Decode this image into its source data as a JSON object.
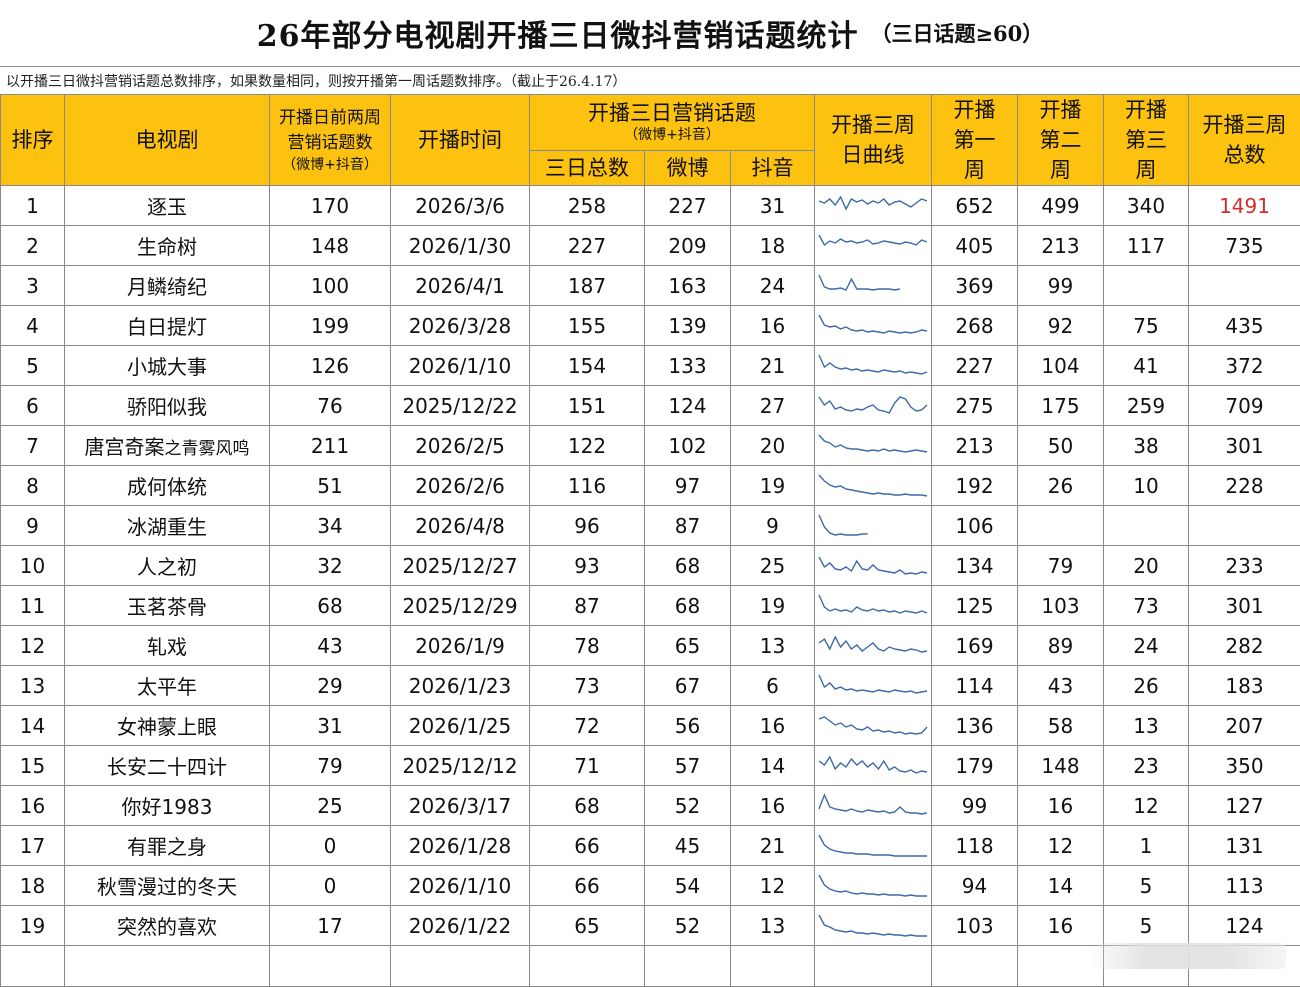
{
  "title": "26年部分电视剧开播三日微抖营销话题统计",
  "title_note": "（三日话题≥60）",
  "subtitle": "以开播三日微抖营销话题总数排序，如果数量相同，则按开播第一周话题数排序。（截止于26.4.17）",
  "headers": {
    "rank": "排序",
    "drama": "电视剧",
    "pre": "开播日前两周营销话题数",
    "pre_sub": "（微博+抖音）",
    "date": "开播时间",
    "three_day_group": "开播三日营销话题",
    "three_day_group_sub": "（微博+抖音）",
    "three_total": "三日总数",
    "weibo": "微博",
    "douyin": "抖音",
    "curve": "开播三周日曲线",
    "week1": "开播第一周",
    "week2": "开播第二周",
    "week3": "开播第三周",
    "total3": "开播三周总数"
  },
  "rows": [
    {
      "rank": "1",
      "name": "逐玉",
      "name_suffix": "",
      "pre": "170",
      "date": "2026/3/6",
      "total": "258",
      "weibo": "227",
      "douyin": "31",
      "w1": "652",
      "w2": "499",
      "w3": "340",
      "sum": "1491",
      "curve": [
        18,
        16,
        20,
        14,
        22,
        10,
        20,
        17,
        19,
        15,
        18,
        16,
        20,
        14,
        17,
        18,
        15,
        12,
        16,
        20,
        18
      ]
    },
    {
      "rank": "2",
      "name": "生命树",
      "name_suffix": "",
      "pre": "148",
      "date": "2026/1/30",
      "total": "227",
      "weibo": "209",
      "douyin": "18",
      "w1": "405",
      "w2": "213",
      "w3": "117",
      "sum": "735",
      "curve": [
        24,
        14,
        18,
        16,
        20,
        17,
        18,
        16,
        17,
        19,
        15,
        16,
        18,
        17,
        16,
        15,
        17,
        16,
        14,
        19,
        17
      ]
    },
    {
      "rank": "3",
      "name": "月鳞绮纪",
      "name_suffix": "",
      "pre": "100",
      "date": "2026/4/1",
      "total": "187",
      "weibo": "163",
      "douyin": "24",
      "w1": "369",
      "w2": "99",
      "w3": "",
      "sum": "",
      "curve": [
        24,
        12,
        10,
        10,
        11,
        9,
        20,
        10,
        10,
        10,
        9,
        10,
        10,
        10,
        9,
        10
      ]
    },
    {
      "rank": "4",
      "name": "白日提灯",
      "name_suffix": "",
      "pre": "199",
      "date": "2026/3/28",
      "total": "155",
      "weibo": "139",
      "douyin": "16",
      "w1": "268",
      "w2": "92",
      "w3": "75",
      "sum": "435",
      "curve": [
        24,
        14,
        12,
        13,
        10,
        12,
        9,
        8,
        9,
        7,
        8,
        7,
        6,
        8,
        7,
        6,
        7,
        6,
        7,
        9,
        8
      ]
    },
    {
      "rank": "5",
      "name": "小城大事",
      "name_suffix": "",
      "pre": "126",
      "date": "2026/1/10",
      "total": "154",
      "weibo": "133",
      "douyin": "21",
      "w1": "227",
      "w2": "104",
      "w3": "41",
      "sum": "372",
      "curve": [
        24,
        12,
        16,
        12,
        10,
        11,
        9,
        10,
        8,
        9,
        8,
        7,
        9,
        8,
        7,
        8,
        6,
        7,
        6,
        5,
        7
      ]
    },
    {
      "rank": "6",
      "name": "骄阳似我",
      "name_suffix": "",
      "pre": "76",
      "date": "2025/12/22",
      "total": "151",
      "weibo": "124",
      "douyin": "27",
      "w1": "275",
      "w2": "175",
      "w3": "259",
      "sum": "709",
      "curve": [
        22,
        14,
        18,
        10,
        12,
        9,
        8,
        10,
        9,
        12,
        14,
        9,
        8,
        6,
        16,
        22,
        20,
        12,
        8,
        9,
        14
      ]
    },
    {
      "rank": "7",
      "name": "唐宫奇案",
      "name_suffix": "之青雾风鸣",
      "pre": "211",
      "date": "2026/2/5",
      "total": "122",
      "weibo": "102",
      "douyin": "20",
      "w1": "213",
      "w2": "50",
      "w3": "38",
      "sum": "301",
      "curve": [
        24,
        18,
        16,
        12,
        14,
        11,
        10,
        10,
        9,
        8,
        9,
        8,
        10,
        8,
        9,
        8,
        7,
        8,
        9,
        8,
        7
      ]
    },
    {
      "rank": "8",
      "name": "成何体统",
      "name_suffix": "",
      "pre": "51",
      "date": "2026/2/6",
      "total": "116",
      "weibo": "97",
      "douyin": "19",
      "w1": "192",
      "w2": "26",
      "w3": "10",
      "sum": "228",
      "curve": [
        24,
        18,
        14,
        12,
        13,
        10,
        9,
        8,
        7,
        6,
        5,
        6,
        5,
        5,
        4,
        4,
        5,
        4,
        4,
        4,
        3
      ]
    },
    {
      "rank": "9",
      "name": "冰湖重生",
      "name_suffix": "",
      "pre": "34",
      "date": "2026/4/8",
      "total": "96",
      "weibo": "87",
      "douyin": "9",
      "w1": "106",
      "w2": "",
      "w3": "",
      "sum": "",
      "curve": [
        24,
        12,
        6,
        4,
        5,
        4,
        4,
        4,
        5,
        5
      ]
    },
    {
      "rank": "10",
      "name": "人之初",
      "name_suffix": "",
      "pre": "32",
      "date": "2025/12/27",
      "total": "93",
      "weibo": "68",
      "douyin": "25",
      "w1": "134",
      "w2": "79",
      "w3": "20",
      "sum": "233",
      "curve": [
        22,
        12,
        16,
        10,
        9,
        12,
        8,
        18,
        10,
        9,
        14,
        9,
        8,
        7,
        6,
        9,
        5,
        6,
        5,
        7,
        6
      ]
    },
    {
      "rank": "11",
      "name": "玉茗茶骨",
      "name_suffix": "",
      "pre": "68",
      "date": "2025/12/29",
      "total": "87",
      "weibo": "68",
      "douyin": "19",
      "w1": "125",
      "w2": "103",
      "w3": "73",
      "sum": "301",
      "curve": [
        24,
        12,
        8,
        10,
        8,
        9,
        7,
        12,
        9,
        8,
        10,
        8,
        9,
        7,
        8,
        6,
        8,
        7,
        6,
        8,
        6
      ]
    },
    {
      "rank": "12",
      "name": "轧戏",
      "name_suffix": "",
      "pre": "43",
      "date": "2026/1/9",
      "total": "78",
      "weibo": "65",
      "douyin": "13",
      "w1": "169",
      "w2": "89",
      "w3": "24",
      "sum": "282",
      "curve": [
        16,
        20,
        10,
        22,
        12,
        18,
        10,
        14,
        8,
        12,
        16,
        10,
        8,
        12,
        10,
        9,
        8,
        10,
        9,
        7,
        8
      ]
    },
    {
      "rank": "13",
      "name": "太平年",
      "name_suffix": "",
      "pre": "29",
      "date": "2026/1/23",
      "total": "73",
      "weibo": "67",
      "douyin": "6",
      "w1": "114",
      "w2": "43",
      "w3": "26",
      "sum": "183",
      "curve": [
        24,
        12,
        16,
        10,
        12,
        9,
        10,
        8,
        9,
        8,
        7,
        9,
        8,
        7,
        9,
        8,
        7,
        8,
        6,
        7,
        8
      ]
    },
    {
      "rank": "14",
      "name": "女神蒙上眼",
      "name_suffix": "",
      "pre": "31",
      "date": "2026/1/25",
      "total": "72",
      "weibo": "56",
      "douyin": "16",
      "w1": "136",
      "w2": "58",
      "w3": "13",
      "sum": "207",
      "curve": [
        20,
        22,
        18,
        14,
        16,
        12,
        14,
        10,
        9,
        12,
        8,
        9,
        7,
        8,
        6,
        7,
        5,
        6,
        5,
        6,
        12
      ]
    },
    {
      "rank": "15",
      "name": "长安二十四计",
      "name_suffix": "",
      "pre": "79",
      "date": "2025/12/12",
      "total": "71",
      "weibo": "57",
      "douyin": "14",
      "w1": "179",
      "w2": "148",
      "w3": "23",
      "sum": "350",
      "curve": [
        18,
        14,
        22,
        10,
        16,
        12,
        20,
        14,
        18,
        12,
        16,
        10,
        18,
        9,
        12,
        8,
        7,
        9,
        6,
        8,
        7
      ]
    },
    {
      "rank": "16",
      "name": "你好1983",
      "name_suffix": "",
      "pre": "25",
      "date": "2026/3/17",
      "total": "68",
      "weibo": "52",
      "douyin": "16",
      "w1": "99",
      "w2": "16",
      "w3": "12",
      "sum": "127",
      "curve": [
        10,
        24,
        12,
        10,
        9,
        8,
        10,
        8,
        7,
        9,
        8,
        7,
        8,
        6,
        7,
        12,
        7,
        6,
        6,
        5,
        6
      ]
    },
    {
      "rank": "17",
      "name": "有罪之身",
      "name_suffix": "",
      "pre": "0",
      "date": "2026/1/28",
      "total": "66",
      "weibo": "45",
      "douyin": "21",
      "w1": "118",
      "w2": "12",
      "w3": "1",
      "sum": "131",
      "curve": [
        24,
        14,
        10,
        8,
        7,
        6,
        6,
        5,
        5,
        5,
        4,
        4,
        4,
        4,
        3,
        3,
        3,
        3,
        3,
        3,
        3
      ]
    },
    {
      "rank": "18",
      "name": "秋雪漫过的冬天",
      "name_suffix": "",
      "pre": "0",
      "date": "2026/1/10",
      "total": "66",
      "weibo": "54",
      "douyin": "12",
      "w1": "94",
      "w2": "14",
      "w3": "5",
      "sum": "113",
      "curve": [
        24,
        14,
        10,
        8,
        7,
        8,
        6,
        5,
        6,
        5,
        5,
        4,
        5,
        4,
        4,
        4,
        3,
        4,
        3,
        3,
        3
      ]
    },
    {
      "rank": "19",
      "name": "突然的喜欢",
      "name_suffix": "",
      "pre": "17",
      "date": "2026/1/22",
      "total": "65",
      "weibo": "52",
      "douyin": "13",
      "w1": "103",
      "w2": "16",
      "w3": "5",
      "sum": "124",
      "curve": [
        24,
        14,
        12,
        9,
        8,
        7,
        8,
        6,
        6,
        5,
        6,
        5,
        4,
        5,
        4,
        4,
        3,
        4,
        3,
        3,
        3
      ]
    }
  ],
  "colors": {
    "header_bg": "#fdc20f",
    "highlight": "#d12f2f",
    "sparkline": "#3d6aa8"
  }
}
